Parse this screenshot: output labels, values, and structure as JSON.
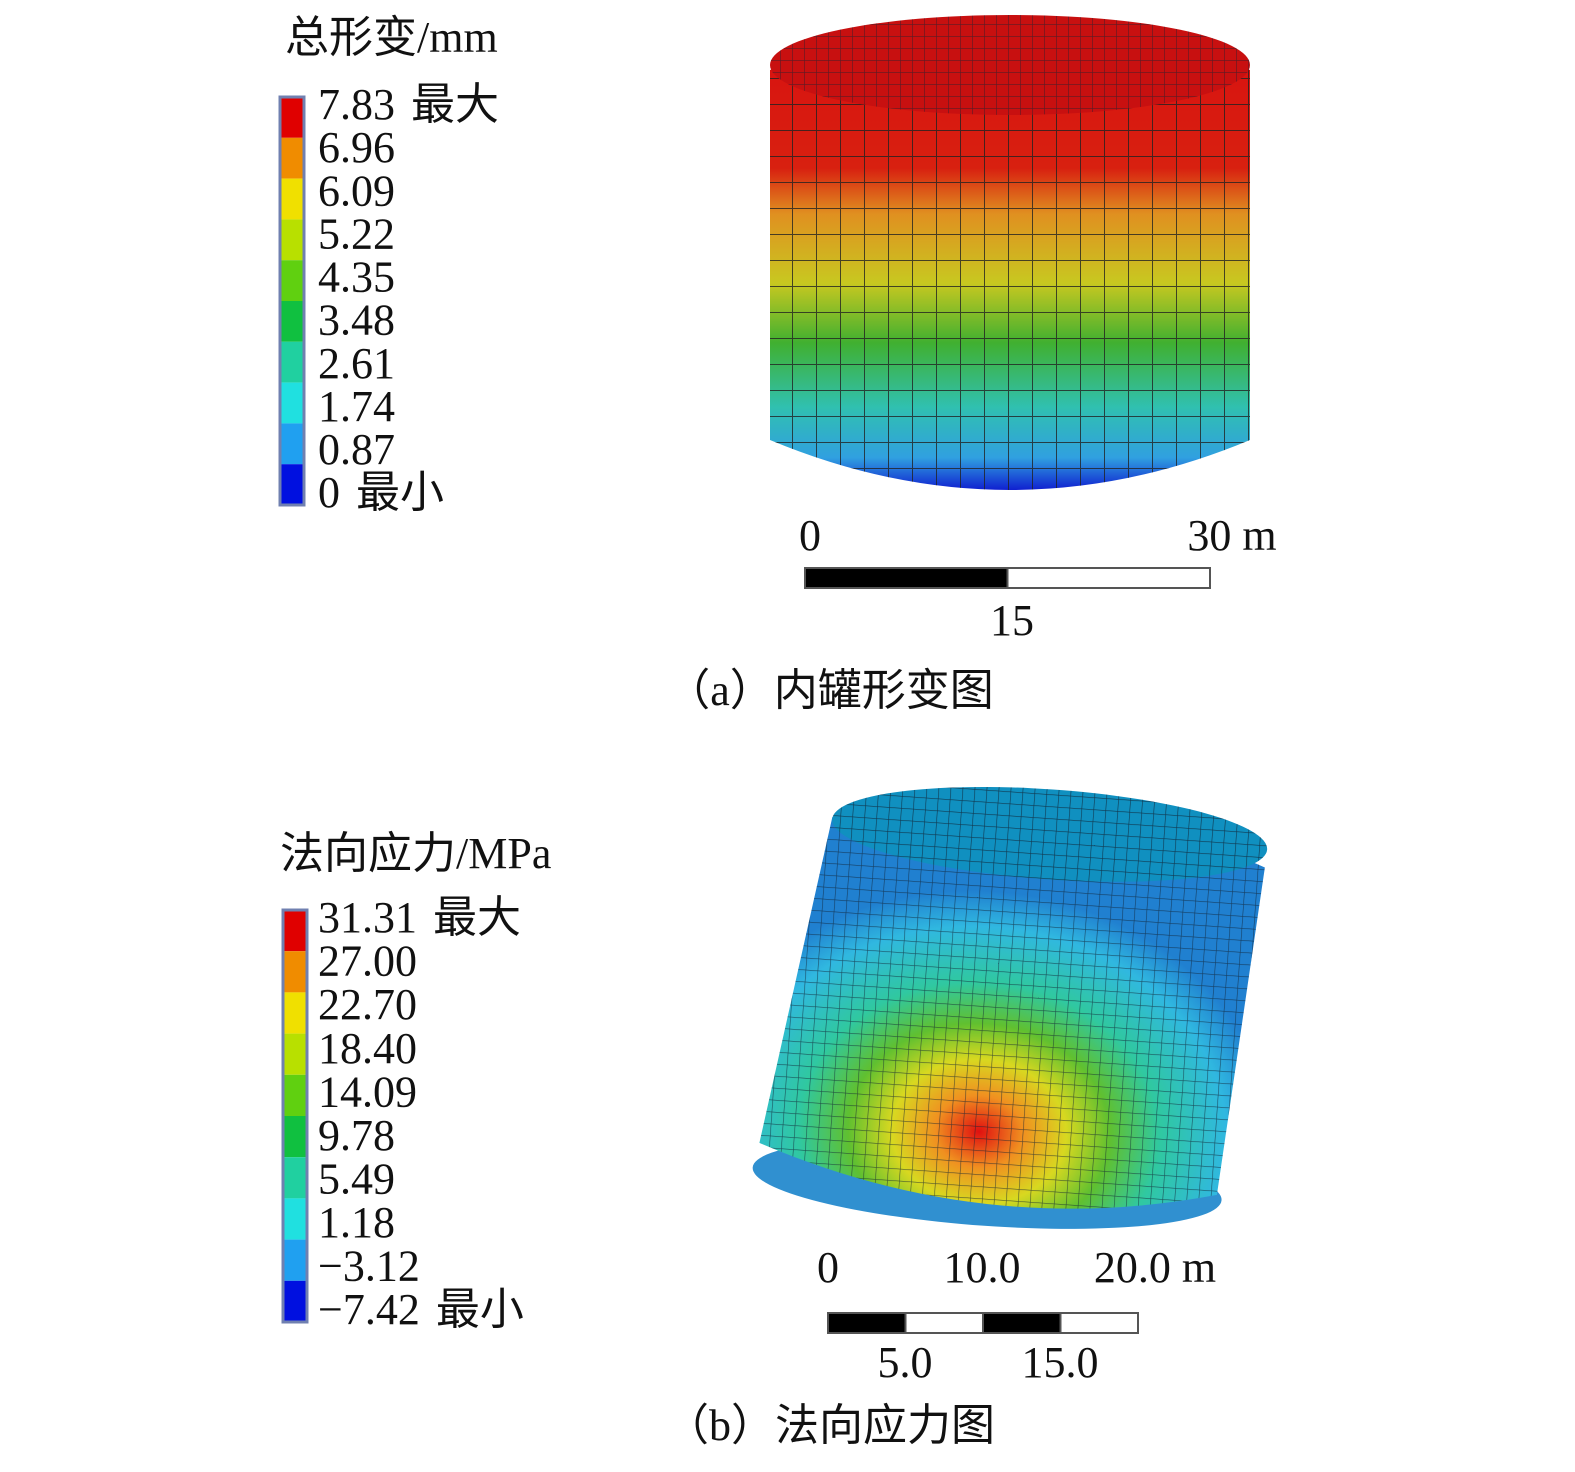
{
  "panels": [
    {
      "legend": {
        "title": "总形变/mm",
        "labels": [
          "7.83",
          "6.96",
          "6.09",
          "5.22",
          "4.35",
          "3.48",
          "2.61",
          "1.74",
          "0.87",
          "0"
        ],
        "max_tag": "最大",
        "min_tag": "最小",
        "colors": [
          "#e00000",
          "#f08c00",
          "#f0e000",
          "#b8e000",
          "#60d010",
          "#10c040",
          "#20d0a0",
          "#20e0e0",
          "#20a0f0",
          "#0010e0"
        ]
      },
      "scale_bar": {
        "top_labels": [
          "0",
          "30 m"
        ],
        "bottom_labels": [
          "15"
        ]
      },
      "caption": "（a）内罐形变图"
    },
    {
      "legend": {
        "title": "法向应力/MPa",
        "labels": [
          "31.31",
          "27.00",
          "22.70",
          "18.40",
          "14.09",
          "9.78",
          "5.49",
          "1.18",
          "−3.12",
          "−7.42"
        ],
        "max_tag": "最大",
        "min_tag": "最小",
        "colors": [
          "#e00000",
          "#f08c00",
          "#f0e000",
          "#b8e000",
          "#60d010",
          "#10c040",
          "#20d0a0",
          "#20e0e0",
          "#20a0f0",
          "#0010e0"
        ]
      },
      "scale_bar": {
        "top_labels": [
          "0",
          "10.0",
          "20.0 m"
        ],
        "bottom_labels": [
          "5.0",
          "15.0"
        ]
      },
      "caption": "（b）法向应力图"
    }
  ]
}
